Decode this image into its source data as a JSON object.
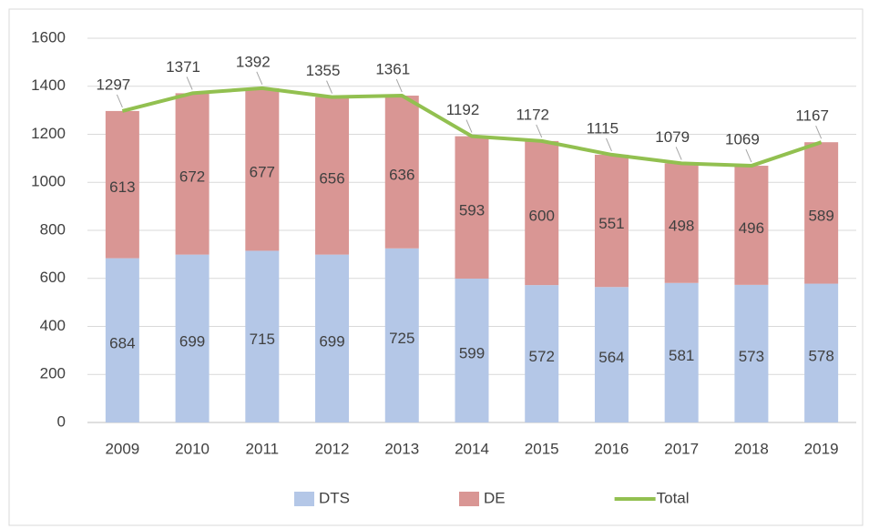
{
  "chart_data": {
    "type": "bar",
    "stacked": true,
    "categories": [
      "2009",
      "2010",
      "2011",
      "2012",
      "2013",
      "2014",
      "2015",
      "2016",
      "2017",
      "2018",
      "2019"
    ],
    "series": [
      {
        "name": "DTS",
        "color": "#b4c7e7",
        "values": [
          684,
          699,
          715,
          699,
          725,
          599,
          572,
          564,
          581,
          573,
          578
        ]
      },
      {
        "name": "DE",
        "color": "#d99694",
        "values": [
          613,
          672,
          677,
          656,
          636,
          593,
          600,
          551,
          498,
          496,
          589
        ]
      },
      {
        "name": "Total",
        "type": "line",
        "color": "#92c050",
        "values": [
          1297,
          1371,
          1392,
          1355,
          1361,
          1192,
          1172,
          1115,
          1079,
          1069,
          1167
        ]
      }
    ],
    "ylim": [
      0,
      1600
    ],
    "yticks": [
      0,
      200,
      400,
      600,
      800,
      1000,
      1200,
      1400,
      1600
    ],
    "grid": true,
    "legend": "bottom"
  }
}
